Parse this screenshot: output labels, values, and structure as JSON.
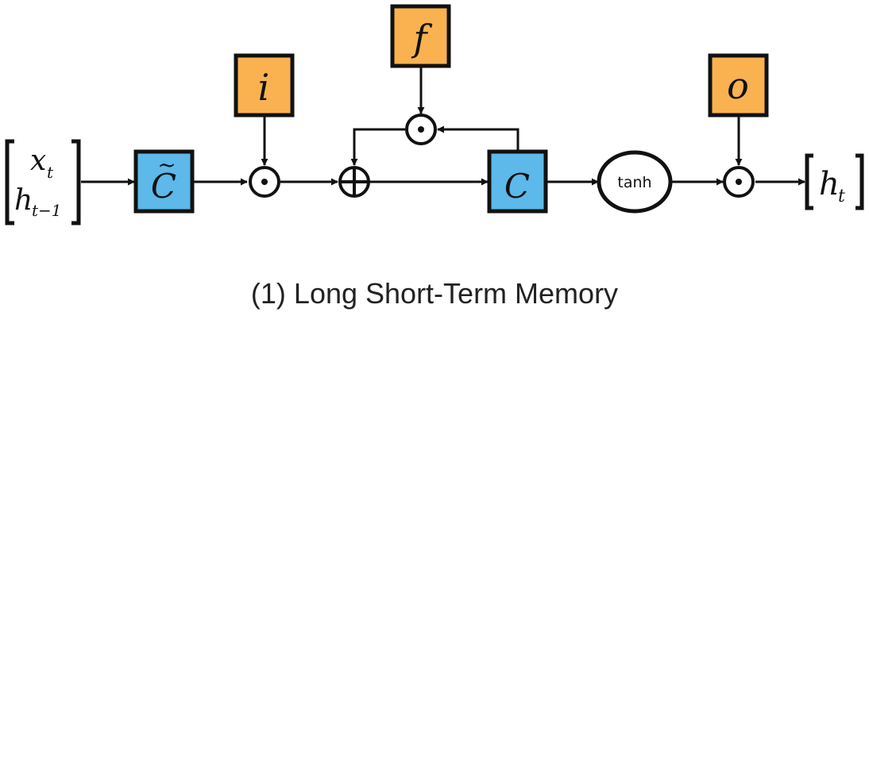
{
  "diagram": {
    "input": {
      "top_var": "x",
      "top_sub": "t",
      "bottom_var": "h",
      "bottom_sub": "t−1"
    },
    "candidate": {
      "label": "C",
      "tilde": "~"
    },
    "input_gate": {
      "label": "i"
    },
    "forget_gate": {
      "label": "f"
    },
    "cell_state": {
      "label": "C"
    },
    "activation": {
      "label": "tanh"
    },
    "output_gate": {
      "label": "o"
    },
    "output": {
      "var": "h",
      "sub": "t"
    },
    "operators": {
      "multiply": "⊙",
      "add": "⊕"
    }
  },
  "caption": "(1) Long Short-Term Memory",
  "colors": {
    "gate": "#F9B24F",
    "state": "#5CB9E9",
    "stroke": "#111111"
  }
}
